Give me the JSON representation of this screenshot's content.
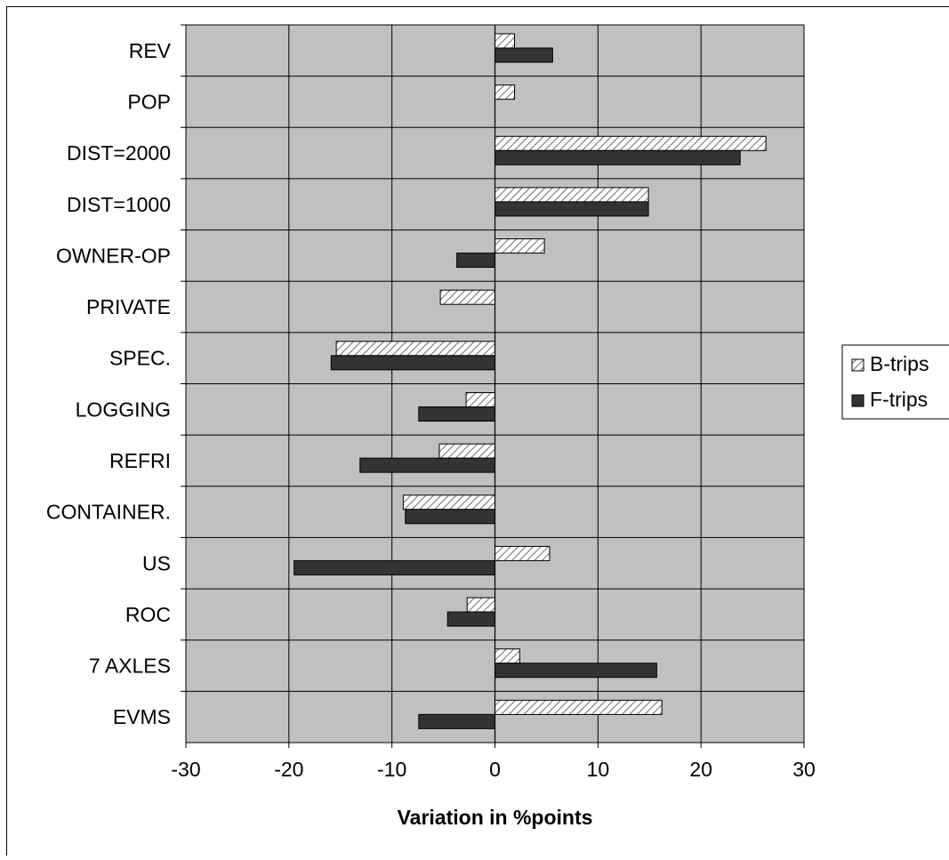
{
  "chart_data": {
    "type": "bar",
    "orientation": "horizontal",
    "categories": [
      "REV",
      "POP",
      "DIST=2000",
      "DIST=1000",
      "OWNER-OP",
      "PRIVATE",
      "SPEC.",
      "LOGGING",
      "REFRI",
      "CONTAINER.",
      "US",
      "ROC",
      "7 AXLES",
      "EVMS"
    ],
    "series": [
      {
        "name": "B-trips",
        "pattern": "diagonal-hatch",
        "color": "#ffffff",
        "values": [
          1.9,
          1.9,
          26.3,
          14.9,
          4.8,
          -5.3,
          -15.4,
          -2.8,
          -5.4,
          -8.9,
          5.3,
          -2.7,
          2.4,
          16.2
        ]
      },
      {
        "name": "F-trips",
        "pattern": "solid",
        "color": "#333333",
        "values": [
          5.6,
          0,
          23.8,
          14.9,
          -3.7,
          0,
          -15.9,
          -7.4,
          -13.1,
          -8.7,
          -19.5,
          -4.6,
          15.7,
          -7.4
        ]
      }
    ],
    "xlabel": "Variation in %points",
    "ylabel": "",
    "xlim": [
      -30,
      30
    ],
    "xticks": [
      "-30",
      "-20",
      "-10",
      "0",
      "10",
      "20",
      "30"
    ],
    "grid": true,
    "plot_background": "#c0c0c0",
    "legend": {
      "position": "right",
      "entries": [
        "B-trips",
        "F-trips"
      ]
    }
  }
}
